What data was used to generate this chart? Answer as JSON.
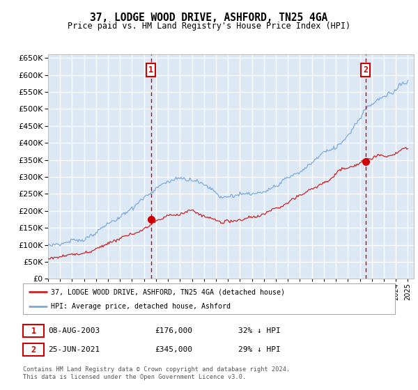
{
  "title1": "37, LODGE WOOD DRIVE, ASHFORD, TN25 4GA",
  "title2": "Price paid vs. HM Land Registry's House Price Index (HPI)",
  "legend_line1": "37, LODGE WOOD DRIVE, ASHFORD, TN25 4GA (detached house)",
  "legend_line2": "HPI: Average price, detached house, Ashford",
  "transaction1_date": "08-AUG-2003",
  "transaction1_price": "£176,000",
  "transaction1_hpi": "32% ↓ HPI",
  "transaction1_year": 2003.58,
  "transaction1_value": 176000,
  "transaction2_date": "25-JUN-2021",
  "transaction2_price": "£345,000",
  "transaction2_hpi": "29% ↓ HPI",
  "transaction2_year": 2021.47,
  "transaction2_value": 345000,
  "hpi_color": "#7aaadd",
  "price_color": "#cc2222",
  "marker_color": "#cc0000",
  "vline_color": "#cc0000",
  "bg_color": "#dde8f5",
  "grid_color": "#ffffff",
  "footer_text": "Contains HM Land Registry data © Crown copyright and database right 2024.\nThis data is licensed under the Open Government Licence v3.0.",
  "ylim": [
    0,
    660000
  ],
  "yticks": [
    0,
    50000,
    100000,
    150000,
    200000,
    250000,
    300000,
    350000,
    400000,
    450000,
    500000,
    550000,
    600000,
    650000
  ]
}
